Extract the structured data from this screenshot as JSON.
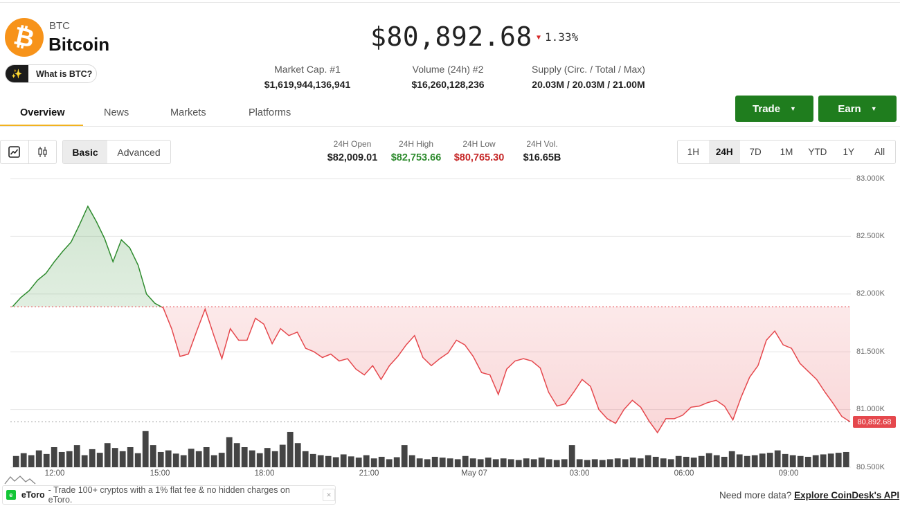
{
  "coin": {
    "symbol": "BTC",
    "name": "Bitcoin",
    "logo_glyph": "₿",
    "logo_color": "#f7931a",
    "what_label": "What is BTC?"
  },
  "price": {
    "value": "$80,892.68",
    "change": "1.33%",
    "direction": "down"
  },
  "stats": [
    {
      "label": "Market Cap. #1",
      "value": "$1,619,944,136,941"
    },
    {
      "label": "Volume (24h) #2",
      "value": "$16,260,128,236"
    },
    {
      "label": "Supply (Circ. / Total / Max)",
      "value": "20.03M / 20.03M / 21.00M"
    }
  ],
  "tabs": [
    {
      "label": "Overview",
      "active": true
    },
    {
      "label": "News"
    },
    {
      "label": "Markets"
    },
    {
      "label": "Platforms"
    }
  ],
  "buttons": {
    "trade": "Trade",
    "earn": "Earn",
    "color": "#1f7d1e"
  },
  "chart_mode": {
    "basic": "Basic",
    "advanced": "Advanced",
    "selected": "Basic"
  },
  "ohlc": [
    {
      "label": "24H Open",
      "value": "$82,009.01",
      "color": "#222222"
    },
    {
      "label": "24H High",
      "value": "$82,753.66",
      "color": "#2e8b2e"
    },
    {
      "label": "24H Low",
      "value": "$80,765.30",
      "color": "#c62828"
    },
    {
      "label": "24H Vol.",
      "value": "$16.65B",
      "color": "#222222"
    }
  ],
  "ranges": [
    "1H",
    "24H",
    "7D",
    "1M",
    "YTD",
    "1Y",
    "All"
  ],
  "range_selected": "24H",
  "chart_data": {
    "type": "line",
    "y_ticks": [
      "83.000K",
      "82.500K",
      "82.000K",
      "81.500K",
      "81.000K",
      "80.500K"
    ],
    "ylim": [
      80500,
      83000
    ],
    "x_ticks": [
      "12:00",
      "15:00",
      "18:00",
      "21:00",
      "May 07",
      "03:00",
      "06:00",
      "09:00"
    ],
    "baseline": 81890,
    "last_price_label": "80,892.68",
    "up_color": "#2e8b2e",
    "down_color": "#e5484d",
    "prices": [
      81890,
      81970,
      82030,
      82120,
      82180,
      82280,
      82370,
      82450,
      82600,
      82760,
      82630,
      82480,
      82280,
      82470,
      82400,
      82250,
      82000,
      81920,
      81880,
      81700,
      81460,
      81480,
      81680,
      81870,
      81650,
      81440,
      81700,
      81600,
      81600,
      81790,
      81740,
      81570,
      81700,
      81640,
      81670,
      81530,
      81500,
      81450,
      81480,
      81420,
      81440,
      81350,
      81300,
      81380,
      81260,
      81380,
      81460,
      81560,
      81640,
      81450,
      81380,
      81440,
      81490,
      81600,
      81560,
      81460,
      81320,
      81300,
      81130,
      81350,
      81420,
      81440,
      81420,
      81360,
      81150,
      81030,
      81050,
      81150,
      81260,
      81200,
      81000,
      80920,
      80880,
      81000,
      81080,
      81020,
      80900,
      80800,
      80920,
      80920,
      80950,
      81020,
      81030,
      81060,
      81080,
      81030,
      80910,
      81110,
      81280,
      81380,
      81600,
      81680,
      81560,
      81530,
      81400,
      81330,
      81260,
      81150,
      81050,
      80940,
      80893
    ],
    "volumes": [
      0.28,
      0.35,
      0.3,
      0.42,
      0.33,
      0.5,
      0.38,
      0.4,
      0.55,
      0.3,
      0.45,
      0.36,
      0.6,
      0.48,
      0.4,
      0.5,
      0.35,
      0.9,
      0.55,
      0.38,
      0.42,
      0.34,
      0.3,
      0.46,
      0.4,
      0.5,
      0.3,
      0.36,
      0.75,
      0.6,
      0.5,
      0.42,
      0.35,
      0.48,
      0.4,
      0.56,
      0.88,
      0.6,
      0.4,
      0.33,
      0.3,
      0.28,
      0.25,
      0.32,
      0.27,
      0.24,
      0.3,
      0.22,
      0.26,
      0.2,
      0.25,
      0.55,
      0.3,
      0.22,
      0.2,
      0.26,
      0.24,
      0.22,
      0.2,
      0.28,
      0.22,
      0.2,
      0.24,
      0.2,
      0.22,
      0.2,
      0.18,
      0.22,
      0.2,
      0.24,
      0.2,
      0.18,
      0.2,
      0.55,
      0.2,
      0.18,
      0.2,
      0.18,
      0.2,
      0.22,
      0.2,
      0.24,
      0.22,
      0.3,
      0.26,
      0.22,
      0.2,
      0.28,
      0.26,
      0.24,
      0.28,
      0.35,
      0.3,
      0.26,
      0.4,
      0.32,
      0.28,
      0.3,
      0.34,
      0.36,
      0.42,
      0.33,
      0.3,
      0.28,
      0.26,
      0.3,
      0.32,
      0.34,
      0.36,
      0.38
    ]
  },
  "ad": {
    "brand": "eToro",
    "text": "- Trade 100+ cryptos with a 1% flat fee & no hidden charges on eToro."
  },
  "footer": {
    "prompt": "Need more data?",
    "link": "Explore CoinDesk's API"
  }
}
